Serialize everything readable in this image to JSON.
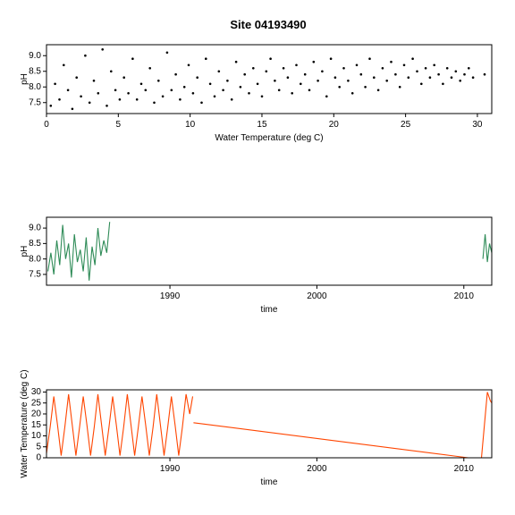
{
  "title": "Site 04193490",
  "colors": {
    "scatter": "#000000",
    "ph_series": "#2e8b57",
    "temp_series": "#ff4500"
  },
  "chart_data": [
    {
      "id": "ph_vs_temp",
      "type": "scatter",
      "xlabel": "Water Temperature (deg C)",
      "ylabel": "pH",
      "xlim": [
        0,
        31
      ],
      "ylim": [
        7.15,
        9.35
      ],
      "xticks": [
        0,
        5,
        10,
        15,
        20,
        25,
        30
      ],
      "yticks": [
        7.5,
        8.0,
        8.5,
        9.0
      ],
      "ytick_labels": [
        "7.5",
        "8.0",
        "8.5",
        "9.0"
      ],
      "grid": false,
      "series": [
        {
          "points": [
            [
              0.3,
              7.4
            ],
            [
              0.6,
              8.1
            ],
            [
              0.9,
              7.6
            ],
            [
              1.2,
              8.7
            ],
            [
              1.5,
              7.9
            ],
            [
              1.8,
              7.3
            ],
            [
              2.1,
              8.3
            ],
            [
              2.4,
              7.7
            ],
            [
              2.7,
              9.0
            ],
            [
              3.0,
              7.5
            ],
            [
              3.3,
              8.2
            ],
            [
              3.6,
              7.8
            ],
            [
              3.9,
              9.2
            ],
            [
              4.2,
              7.4
            ],
            [
              4.5,
              8.5
            ],
            [
              4.8,
              7.9
            ],
            [
              5.1,
              7.6
            ],
            [
              5.4,
              8.3
            ],
            [
              5.7,
              7.8
            ],
            [
              6.0,
              8.9
            ],
            [
              6.3,
              7.6
            ],
            [
              6.6,
              8.1
            ],
            [
              6.9,
              7.9
            ],
            [
              7.2,
              8.6
            ],
            [
              7.5,
              7.5
            ],
            [
              7.8,
              8.2
            ],
            [
              8.1,
              7.7
            ],
            [
              8.4,
              9.1
            ],
            [
              8.7,
              7.9
            ],
            [
              9.0,
              8.4
            ],
            [
              9.3,
              7.6
            ],
            [
              9.6,
              8.0
            ],
            [
              9.9,
              8.7
            ],
            [
              10.2,
              7.8
            ],
            [
              10.5,
              8.3
            ],
            [
              10.8,
              7.5
            ],
            [
              11.1,
              8.9
            ],
            [
              11.4,
              8.1
            ],
            [
              11.7,
              7.7
            ],
            [
              12.0,
              8.5
            ],
            [
              12.3,
              7.9
            ],
            [
              12.6,
              8.2
            ],
            [
              12.9,
              7.6
            ],
            [
              13.2,
              8.8
            ],
            [
              13.5,
              8.0
            ],
            [
              13.8,
              8.4
            ],
            [
              14.1,
              7.8
            ],
            [
              14.4,
              8.6
            ],
            [
              14.7,
              8.1
            ],
            [
              15.0,
              7.7
            ],
            [
              15.3,
              8.5
            ],
            [
              15.6,
              8.9
            ],
            [
              15.9,
              8.2
            ],
            [
              16.2,
              7.9
            ],
            [
              16.5,
              8.6
            ],
            [
              16.8,
              8.3
            ],
            [
              17.1,
              7.8
            ],
            [
              17.4,
              8.7
            ],
            [
              17.7,
              8.1
            ],
            [
              18.0,
              8.4
            ],
            [
              18.3,
              7.9
            ],
            [
              18.6,
              8.8
            ],
            [
              18.9,
              8.2
            ],
            [
              19.2,
              8.5
            ],
            [
              19.5,
              7.7
            ],
            [
              19.8,
              8.9
            ],
            [
              20.1,
              8.3
            ],
            [
              20.4,
              8.0
            ],
            [
              20.7,
              8.6
            ],
            [
              21.0,
              8.2
            ],
            [
              21.3,
              7.8
            ],
            [
              21.6,
              8.7
            ],
            [
              21.9,
              8.4
            ],
            [
              22.2,
              8.0
            ],
            [
              22.5,
              8.9
            ],
            [
              22.8,
              8.3
            ],
            [
              23.1,
              7.9
            ],
            [
              23.4,
              8.6
            ],
            [
              23.7,
              8.2
            ],
            [
              24.0,
              8.8
            ],
            [
              24.3,
              8.4
            ],
            [
              24.6,
              8.0
            ],
            [
              24.9,
              8.7
            ],
            [
              25.2,
              8.3
            ],
            [
              25.5,
              8.9
            ],
            [
              25.8,
              8.5
            ],
            [
              26.1,
              8.1
            ],
            [
              26.4,
              8.6
            ],
            [
              26.7,
              8.3
            ],
            [
              27.0,
              8.7
            ],
            [
              27.3,
              8.4
            ],
            [
              27.6,
              8.1
            ],
            [
              27.9,
              8.6
            ],
            [
              28.2,
              8.3
            ],
            [
              28.5,
              8.5
            ],
            [
              28.8,
              8.2
            ],
            [
              29.1,
              8.4
            ],
            [
              29.4,
              8.6
            ],
            [
              29.7,
              8.3
            ],
            [
              30.5,
              8.4
            ]
          ]
        }
      ]
    },
    {
      "id": "ph_time",
      "type": "line",
      "xlabel": "time",
      "ylabel": "pH",
      "xlim": [
        1981.6,
        2011.9
      ],
      "ylim": [
        7.15,
        9.35
      ],
      "xticks": [
        1990,
        2000,
        2010
      ],
      "yticks": [
        7.5,
        8.0,
        8.5,
        9.0
      ],
      "ytick_labels": [
        "7.5",
        "8.0",
        "8.5",
        "9.0"
      ],
      "grid": false,
      "series": [
        {
          "segments": [
            [
              [
                1981.7,
                7.6
              ],
              [
                1981.9,
                8.2
              ],
              [
                1982.1,
                7.5
              ],
              [
                1982.3,
                8.6
              ],
              [
                1982.5,
                7.8
              ],
              [
                1982.7,
                9.1
              ],
              [
                1982.9,
                8.0
              ],
              [
                1983.1,
                8.5
              ],
              [
                1983.3,
                7.4
              ],
              [
                1983.5,
                8.8
              ],
              [
                1983.7,
                7.9
              ],
              [
                1983.9,
                8.3
              ],
              [
                1984.1,
                7.6
              ],
              [
                1984.3,
                8.7
              ],
              [
                1984.5,
                7.3
              ],
              [
                1984.7,
                8.4
              ],
              [
                1984.9,
                7.8
              ],
              [
                1985.1,
                9.0
              ],
              [
                1985.3,
                8.1
              ],
              [
                1985.5,
                8.6
              ],
              [
                1985.7,
                8.2
              ],
              [
                1985.9,
                9.2
              ]
            ],
            [
              [
                2011.3,
                8.0
              ],
              [
                2011.45,
                8.8
              ],
              [
                2011.6,
                7.9
              ],
              [
                2011.75,
                8.5
              ],
              [
                2011.9,
                8.2
              ]
            ]
          ]
        }
      ]
    },
    {
      "id": "temp_time",
      "type": "line",
      "xlabel": "time",
      "ylabel": "Water Temperature (deg C)",
      "xlim": [
        1981.6,
        2011.9
      ],
      "ylim": [
        0,
        31
      ],
      "xticks": [
        1990,
        2000,
        2010
      ],
      "yticks": [
        0,
        5,
        10,
        15,
        20,
        25,
        30
      ],
      "ytick_labels": [
        "0",
        "5",
        "10",
        "15",
        "20",
        "25",
        "30"
      ],
      "grid": false,
      "series": [
        {
          "segments": [
            [
              [
                1981.6,
                2
              ],
              [
                1981.85,
                14
              ],
              [
                1982.1,
                28
              ],
              [
                1982.35,
                15
              ],
              [
                1982.6,
                1
              ],
              [
                1982.85,
                14
              ],
              [
                1983.1,
                29
              ],
              [
                1983.35,
                15
              ],
              [
                1983.6,
                1
              ],
              [
                1983.85,
                14
              ],
              [
                1984.1,
                28
              ],
              [
                1984.35,
                15
              ],
              [
                1984.6,
                1
              ],
              [
                1984.85,
                14
              ],
              [
                1985.1,
                29
              ],
              [
                1985.35,
                15
              ],
              [
                1985.6,
                1
              ],
              [
                1985.85,
                14
              ],
              [
                1986.1,
                28
              ],
              [
                1986.35,
                15
              ],
              [
                1986.6,
                1
              ],
              [
                1986.85,
                14
              ],
              [
                1987.1,
                29
              ],
              [
                1987.35,
                15
              ],
              [
                1987.6,
                1
              ],
              [
                1987.85,
                14
              ],
              [
                1988.1,
                28
              ],
              [
                1988.35,
                15
              ],
              [
                1988.6,
                1
              ],
              [
                1988.85,
                14
              ],
              [
                1989.1,
                29
              ],
              [
                1989.35,
                15
              ],
              [
                1989.6,
                1
              ],
              [
                1989.85,
                14
              ],
              [
                1990.1,
                28
              ],
              [
                1990.35,
                15
              ],
              [
                1990.6,
                1
              ],
              [
                1990.85,
                14
              ],
              [
                1991.1,
                29
              ],
              [
                1991.35,
                20
              ],
              [
                1991.55,
                28
              ]
            ],
            [
              [
                1991.6,
                16
              ],
              [
                2010.3,
                0
              ]
            ],
            [
              [
                2011.2,
                0
              ],
              [
                2011.4,
                15
              ],
              [
                2011.6,
                30
              ],
              [
                2011.8,
                26
              ],
              [
                2011.9,
                25
              ]
            ]
          ]
        }
      ]
    }
  ]
}
